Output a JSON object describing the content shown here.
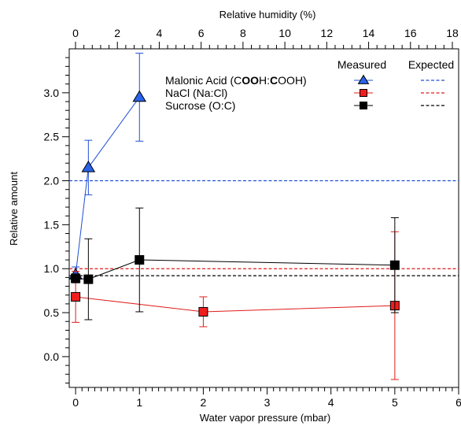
{
  "chart_data": {
    "type": "scatter",
    "title": "",
    "xlabel": "Water vapor pressure (mbar)",
    "ylabel": "Relative amount",
    "x2label": "Relative humidity (%)",
    "xlim": [
      -0.1,
      6.0
    ],
    "ylim": [
      -0.35,
      3.5
    ],
    "x2lim": [
      -0.3,
      18.3
    ],
    "x_ticks": [
      "0",
      "1",
      "2",
      "3",
      "4",
      "5",
      "6"
    ],
    "y_ticks": [
      "0.0",
      "0.5",
      "1.0",
      "1.5",
      "2.0",
      "2.5",
      "3.0"
    ],
    "x2_ticks": [
      "0",
      "2",
      "4",
      "6",
      "8",
      "10",
      "12",
      "14",
      "16",
      "18"
    ],
    "grid": false,
    "legend_position": "top-right",
    "legend_headers": {
      "measured": "Measured",
      "expected": "Expected"
    },
    "series": [
      {
        "label_parts": [
          {
            "t": "Malonic Acid (C",
            "b": false
          },
          {
            "t": "OO",
            "b": true
          },
          {
            "t": "H:",
            "b": false
          },
          {
            "t": "C",
            "b": true
          },
          {
            "t": "OOH)",
            "b": false
          }
        ],
        "color": "#1f4fd6",
        "fill": "#2a62e8",
        "marker": "triangle",
        "expected": 2.0,
        "points": [
          {
            "x": 0.0,
            "y": 0.93,
            "err": 0.09
          },
          {
            "x": 0.2,
            "y": 2.15,
            "err": 0.31
          },
          {
            "x": 1.0,
            "y": 2.95,
            "err": 0.5
          }
        ]
      },
      {
        "label_parts": [
          {
            "t": "NaCl (Na:Cl)",
            "b": false
          }
        ],
        "color": "#e01b1b",
        "fill": "#f01e1e",
        "marker": "square",
        "expected": 1.0,
        "points": [
          {
            "x": 0.0,
            "y": 0.68,
            "err": 0.29
          },
          {
            "x": 2.0,
            "y": 0.51,
            "err": 0.17
          },
          {
            "x": 5.0,
            "y": 0.58,
            "err": 0.84
          }
        ]
      },
      {
        "label_parts": [
          {
            "t": "Sucrose (O:C)",
            "b": false
          }
        ],
        "color": "#000000",
        "fill": "#000000",
        "marker": "square",
        "expected": 0.92,
        "points": [
          {
            "x": 0.0,
            "y": 0.89,
            "err": 0.05
          },
          {
            "x": 0.2,
            "y": 0.88,
            "err": 0.46
          },
          {
            "x": 1.0,
            "y": 1.1,
            "err": 0.59
          },
          {
            "x": 5.0,
            "y": 1.04,
            "err": 0.54
          }
        ]
      }
    ]
  }
}
